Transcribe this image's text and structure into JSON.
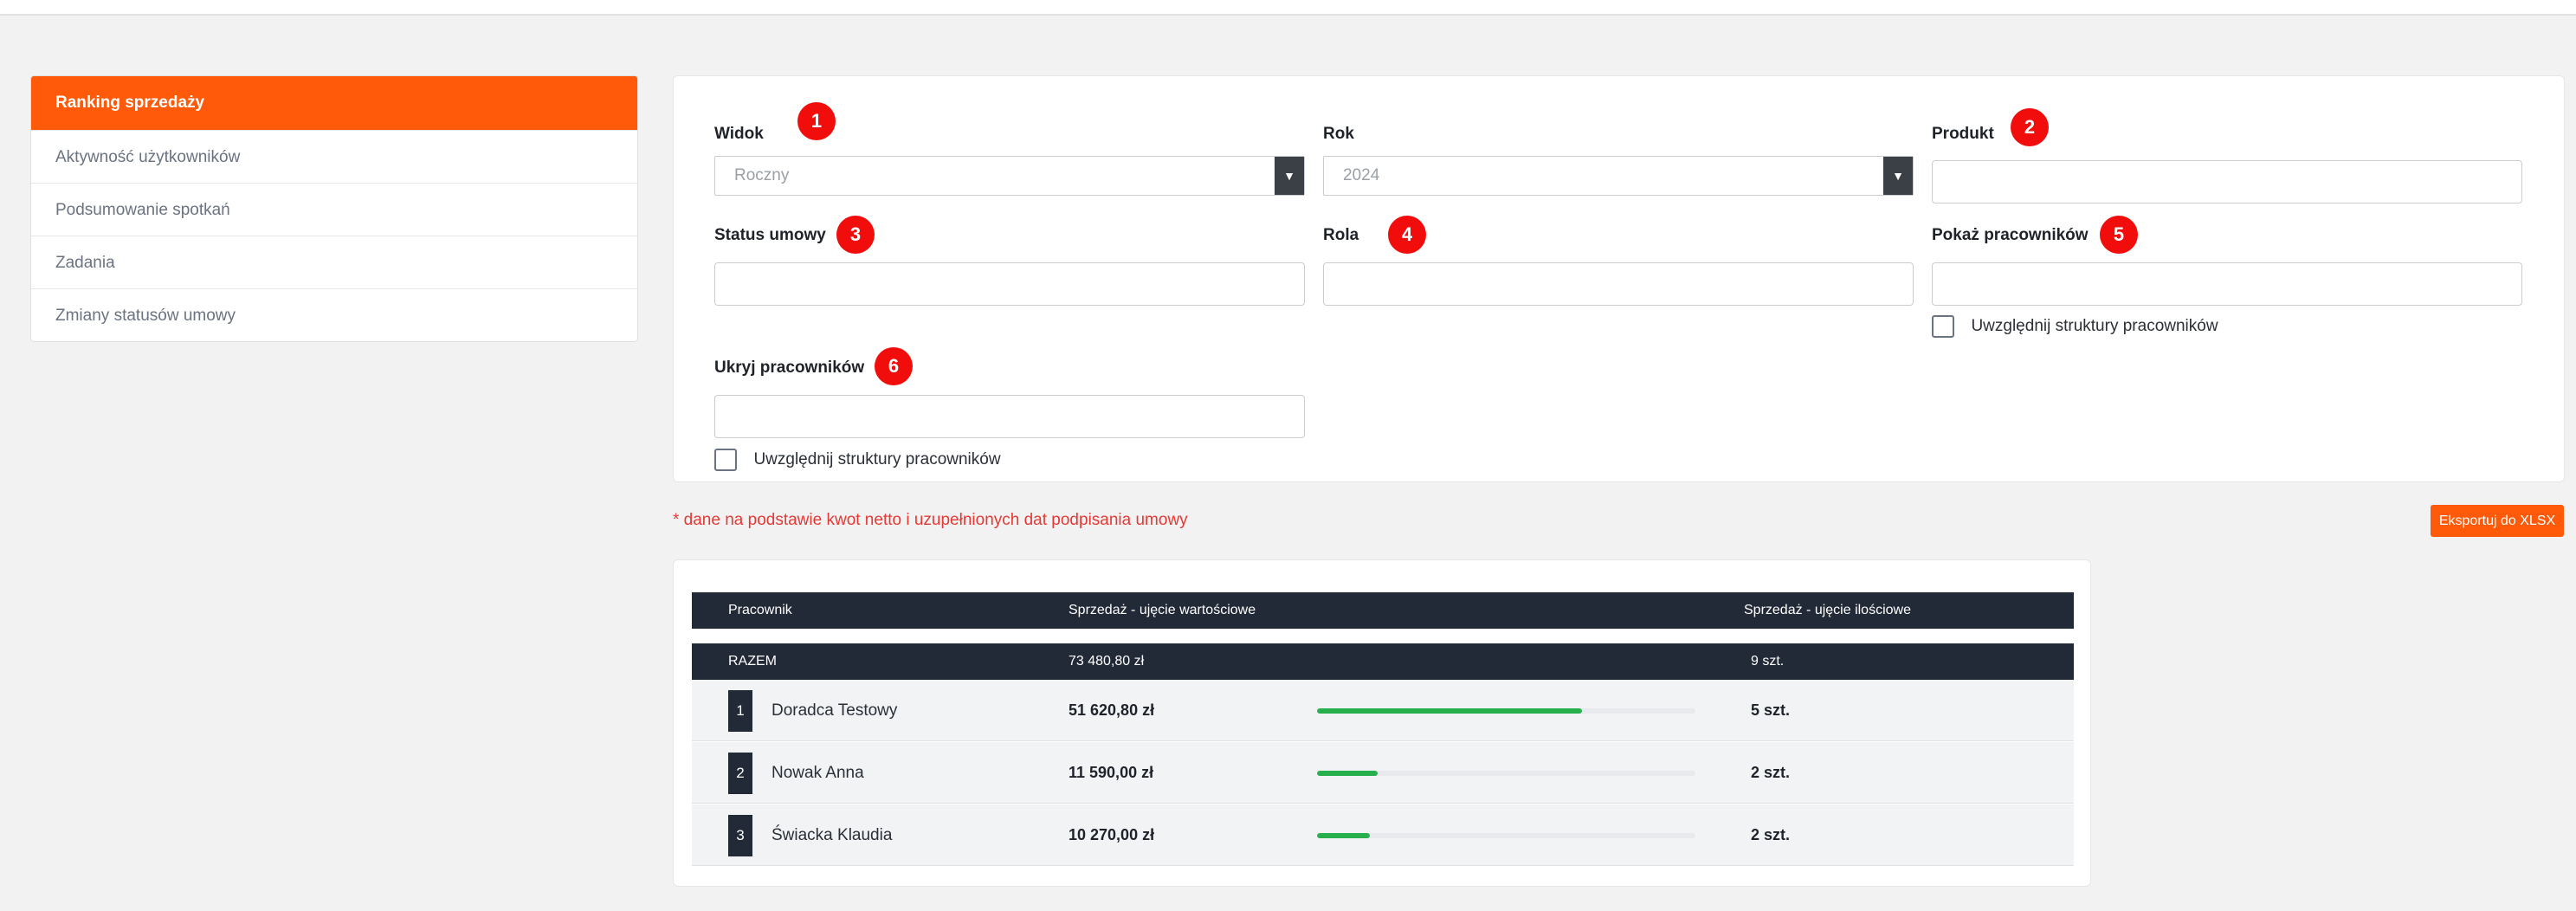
{
  "sidebar": {
    "items": [
      {
        "label": "Ranking sprzedaży",
        "active": true
      },
      {
        "label": "Aktywność użytkowników"
      },
      {
        "label": "Podsumowanie spotkań"
      },
      {
        "label": "Zadania"
      },
      {
        "label": "Zmiany statusów umowy"
      }
    ]
  },
  "filters": {
    "view": {
      "label": "Widok",
      "value": "Roczny",
      "badge": "1"
    },
    "year": {
      "label": "Rok",
      "value": "2024"
    },
    "product": {
      "label": "Produkt",
      "badge": "2"
    },
    "contract_status": {
      "label": "Status umowy",
      "badge": "3"
    },
    "role": {
      "label": "Rola",
      "badge": "4"
    },
    "show_employees": {
      "label": "Pokaż pracowników",
      "badge": "5",
      "checkbox_label": "Uwzględnij struktury pracowników"
    },
    "hide_employees": {
      "label": "Ukryj pracowników",
      "badge": "6",
      "checkbox_label": "Uwzględnij struktury pracowników"
    }
  },
  "note": "* dane na podstawie kwot netto i uzupełnionych dat podpisania umowy",
  "export_label": "Eksportuj do XLSX",
  "table": {
    "headers": {
      "employee": "Pracownik",
      "value_sales": "Sprzedaż - ujęcie wartościowe",
      "qty_sales": "Sprzedaż - ujęcie ilościowe"
    },
    "total": {
      "label": "RAZEM",
      "value": "73 480,80 zł",
      "qty": "9 szt."
    },
    "rows": [
      {
        "rank": "1",
        "name": "Doradca Testowy",
        "value": "51 620,80 zł",
        "share": 0.7,
        "qty": "5 szt."
      },
      {
        "rank": "2",
        "name": "Nowak Anna",
        "value": "11 590,00 zł",
        "share": 0.16,
        "qty": "2 szt."
      },
      {
        "rank": "3",
        "name": "Świacka Klaudia",
        "value": "10 270,00 zł",
        "share": 0.14,
        "qty": "2 szt."
      }
    ]
  },
  "colors": {
    "accent": "#ff5a0a",
    "badge": "#f20d0d",
    "table_header": "#222a37",
    "bar": "#28b04f",
    "note": "#e53935"
  }
}
